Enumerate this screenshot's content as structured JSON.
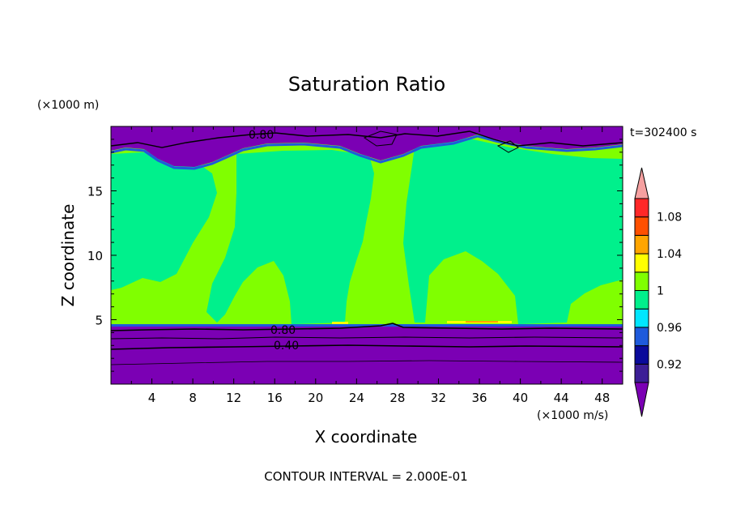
{
  "chart_data": {
    "type": "heatmap",
    "title": "Saturation Ratio",
    "xlabel": "X coordinate",
    "ylabel": "Z coordinate",
    "x_unit": "(×1000 m/s)",
    "y_unit": "(×1000 m)",
    "time_label": "t=302400 s",
    "footer": "CONTOUR INTERVAL = 2.000E-01",
    "xlim": [
      0,
      50
    ],
    "ylim": [
      0,
      20
    ],
    "x_ticks": [
      "4",
      "8",
      "12",
      "16",
      "20",
      "24",
      "28",
      "32",
      "36",
      "40",
      "44",
      "48"
    ],
    "y_ticks": [
      "5",
      "10",
      "15"
    ],
    "contour_labels": [
      "0.80",
      "0.40",
      "0.80"
    ],
    "colorbar": {
      "labels": [
        "0.92",
        "0.96",
        "1",
        "1.04",
        "1.08"
      ],
      "levels": [
        0.9,
        0.92,
        0.94,
        0.96,
        0.98,
        1.0,
        1.02,
        1.04,
        1.06,
        1.08,
        1.1
      ],
      "colors": [
        "#7b00b4",
        "#3c1e96",
        "#0a0a9b",
        "#1e5adc",
        "#00e6ff",
        "#00f08c",
        "#80ff00",
        "#ffff00",
        "#ffa500",
        "#ff5000",
        "#ff2828",
        "#f5a0a0"
      ]
    },
    "regions": {
      "lower_dry_layer": {
        "z_top": 4.5,
        "value": "<0.90"
      },
      "upper_dry_layer": {
        "z_bottom": 18.5,
        "value": "<0.90"
      },
      "green_value": "1.00-1.02",
      "teal_value": "0.98-1.00"
    }
  }
}
